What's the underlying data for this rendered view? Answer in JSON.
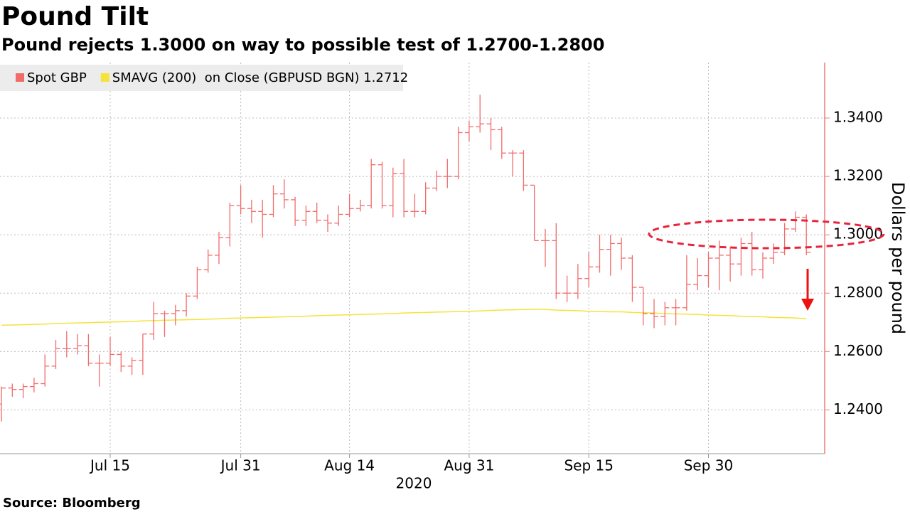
{
  "chart_data": {
    "type": "ohlc",
    "title": "Pound Tilt",
    "subtitle": "Pound rejects 1.3000 on way to possible test of 1.2700-1.2800",
    "source": "Source: Bloomberg",
    "xlabel": "2020",
    "ylabel": "Dollars per pound",
    "grid": true,
    "ylim": [
      1.225,
      1.359
    ],
    "yticks": [
      {
        "value": 1.24,
        "label": "1.2400"
      },
      {
        "value": 1.26,
        "label": "1.2600"
      },
      {
        "value": 1.28,
        "label": "1.2800"
      },
      {
        "value": 1.3,
        "label": "1.3000"
      },
      {
        "value": 1.32,
        "label": "1.3200"
      },
      {
        "value": 1.34,
        "label": "1.3400"
      }
    ],
    "xticks": [
      {
        "value": "2020-07-15",
        "label": "Jul 15"
      },
      {
        "value": "2020-07-31",
        "label": "Jul 31"
      },
      {
        "value": "2020-08-14",
        "label": "Aug 14"
      },
      {
        "value": "2020-08-31",
        "label": "Aug 31"
      },
      {
        "value": "2020-09-15",
        "label": "Sep 15"
      },
      {
        "value": "2020-09-30",
        "label": "Sep 30"
      }
    ],
    "x": [
      "2020-07-01",
      "2020-07-02",
      "2020-07-03",
      "2020-07-06",
      "2020-07-07",
      "2020-07-08",
      "2020-07-09",
      "2020-07-10",
      "2020-07-13",
      "2020-07-14",
      "2020-07-15",
      "2020-07-16",
      "2020-07-17",
      "2020-07-20",
      "2020-07-21",
      "2020-07-22",
      "2020-07-23",
      "2020-07-24",
      "2020-07-27",
      "2020-07-28",
      "2020-07-29",
      "2020-07-30",
      "2020-07-31",
      "2020-08-03",
      "2020-08-04",
      "2020-08-05",
      "2020-08-06",
      "2020-08-07",
      "2020-08-10",
      "2020-08-11",
      "2020-08-12",
      "2020-08-13",
      "2020-08-14",
      "2020-08-17",
      "2020-08-18",
      "2020-08-19",
      "2020-08-20",
      "2020-08-21",
      "2020-08-24",
      "2020-08-25",
      "2020-08-26",
      "2020-08-27",
      "2020-08-28",
      "2020-08-31",
      "2020-09-01",
      "2020-09-02",
      "2020-09-03",
      "2020-09-04",
      "2020-09-07",
      "2020-09-08",
      "2020-09-09",
      "2020-09-10",
      "2020-09-11",
      "2020-09-14",
      "2020-09-15",
      "2020-09-16",
      "2020-09-17",
      "2020-09-18",
      "2020-09-21",
      "2020-09-22",
      "2020-09-23",
      "2020-09-24",
      "2020-09-25",
      "2020-09-28",
      "2020-09-29",
      "2020-09-30",
      "2020-10-01",
      "2020-10-02",
      "2020-10-05",
      "2020-10-06",
      "2020-10-07",
      "2020-10-08",
      "2020-10-09",
      "2020-10-12",
      "2020-10-13"
    ],
    "series": [
      {
        "name": "Spot GBP",
        "color": "#f26b6b",
        "open": [
          1.242,
          1.2475,
          1.247,
          1.248,
          1.249,
          1.255,
          1.261,
          1.261,
          1.262,
          1.256,
          1.256,
          1.259,
          1.255,
          1.257,
          1.266,
          1.273,
          1.273,
          1.274,
          1.279,
          1.288,
          1.293,
          1.299,
          1.31,
          1.309,
          1.308,
          1.307,
          1.314,
          1.312,
          1.305,
          1.308,
          1.305,
          1.304,
          1.307,
          1.309,
          1.31,
          1.324,
          1.31,
          1.321,
          1.308,
          1.308,
          1.316,
          1.32,
          1.32,
          1.335,
          1.337,
          1.338,
          1.336,
          1.328,
          1.328,
          1.317,
          1.298,
          1.298,
          1.28,
          1.28,
          1.285,
          1.289,
          1.295,
          1.297,
          1.292,
          1.282,
          1.273,
          1.272,
          1.275,
          1.275,
          1.283,
          1.286,
          1.292,
          1.293,
          1.29,
          1.297,
          1.288,
          1.292,
          1.294,
          1.302,
          1.306
        ],
        "high": [
          1.248,
          1.249,
          1.249,
          1.251,
          1.259,
          1.264,
          1.267,
          1.266,
          1.266,
          1.259,
          1.265,
          1.26,
          1.258,
          1.266,
          1.277,
          1.274,
          1.276,
          1.28,
          1.289,
          1.295,
          1.301,
          1.311,
          1.317,
          1.312,
          1.312,
          1.317,
          1.319,
          1.313,
          1.31,
          1.311,
          1.307,
          1.31,
          1.314,
          1.312,
          1.326,
          1.325,
          1.323,
          1.326,
          1.314,
          1.318,
          1.322,
          1.326,
          1.337,
          1.339,
          1.348,
          1.34,
          1.337,
          1.329,
          1.329,
          1.317,
          1.302,
          1.304,
          1.286,
          1.29,
          1.294,
          1.3,
          1.3,
          1.299,
          1.293,
          1.282,
          1.278,
          1.277,
          1.278,
          1.293,
          1.292,
          1.294,
          1.298,
          1.296,
          1.299,
          1.301,
          1.294,
          1.297,
          1.304,
          1.308,
          1.307
        ],
        "low": [
          1.236,
          1.2445,
          1.244,
          1.246,
          1.248,
          1.254,
          1.258,
          1.259,
          1.255,
          1.248,
          1.255,
          1.253,
          1.252,
          1.252,
          1.264,
          1.265,
          1.269,
          1.272,
          1.278,
          1.287,
          1.29,
          1.296,
          1.307,
          1.304,
          1.299,
          1.306,
          1.309,
          1.303,
          1.303,
          1.304,
          1.301,
          1.303,
          1.306,
          1.308,
          1.309,
          1.309,
          1.306,
          1.306,
          1.306,
          1.307,
          1.315,
          1.316,
          1.319,
          1.332,
          1.335,
          1.329,
          1.326,
          1.32,
          1.315,
          1.298,
          1.289,
          1.278,
          1.277,
          1.278,
          1.282,
          1.287,
          1.286,
          1.288,
          1.277,
          1.269,
          1.268,
          1.269,
          1.269,
          1.274,
          1.281,
          1.282,
          1.281,
          1.284,
          1.286,
          1.286,
          1.285,
          1.29,
          1.293,
          1.301,
          1.293
        ],
        "close": [
          1.2475,
          1.247,
          1.248,
          1.249,
          1.255,
          1.261,
          1.261,
          1.262,
          1.256,
          1.256,
          1.259,
          1.255,
          1.257,
          1.266,
          1.273,
          1.273,
          1.274,
          1.279,
          1.288,
          1.293,
          1.299,
          1.31,
          1.309,
          1.308,
          1.307,
          1.314,
          1.312,
          1.305,
          1.308,
          1.305,
          1.304,
          1.307,
          1.309,
          1.31,
          1.324,
          1.31,
          1.321,
          1.308,
          1.308,
          1.316,
          1.32,
          1.32,
          1.335,
          1.337,
          1.338,
          1.336,
          1.328,
          1.328,
          1.317,
          1.298,
          1.298,
          1.28,
          1.28,
          1.285,
          1.289,
          1.295,
          1.297,
          1.292,
          1.282,
          1.273,
          1.272,
          1.275,
          1.275,
          1.283,
          1.286,
          1.292,
          1.293,
          1.29,
          1.297,
          1.288,
          1.292,
          1.294,
          1.302,
          1.306,
          1.294
        ]
      },
      {
        "name": "SMAVG (200)  on Close (GBPUSD BGN) 1.2712",
        "color": "#f5e33b",
        "type": "line",
        "values": [
          1.269,
          1.2691,
          1.2692,
          1.2693,
          1.2694,
          1.2696,
          1.2697,
          1.2698,
          1.2699,
          1.27,
          1.2701,
          1.2702,
          1.2703,
          1.2705,
          1.2706,
          1.2707,
          1.2708,
          1.2709,
          1.271,
          1.2711,
          1.2712,
          1.2714,
          1.2715,
          1.2716,
          1.2717,
          1.2718,
          1.2719,
          1.272,
          1.2721,
          1.2723,
          1.2724,
          1.2725,
          1.2726,
          1.2727,
          1.2728,
          1.2729,
          1.273,
          1.2732,
          1.2733,
          1.2734,
          1.2735,
          1.2736,
          1.2737,
          1.2738,
          1.2739,
          1.2741,
          1.2742,
          1.2743,
          1.2744,
          1.2745,
          1.2744,
          1.2742,
          1.2741,
          1.274,
          1.2738,
          1.2737,
          1.2736,
          1.2736,
          1.2734,
          1.2733,
          1.2732,
          1.273,
          1.2729,
          1.2728,
          1.2727,
          1.2725,
          1.2724,
          1.2723,
          1.2721,
          1.272,
          1.2719,
          1.2717,
          1.2716,
          1.2715,
          1.2712
        ]
      }
    ]
  }
}
